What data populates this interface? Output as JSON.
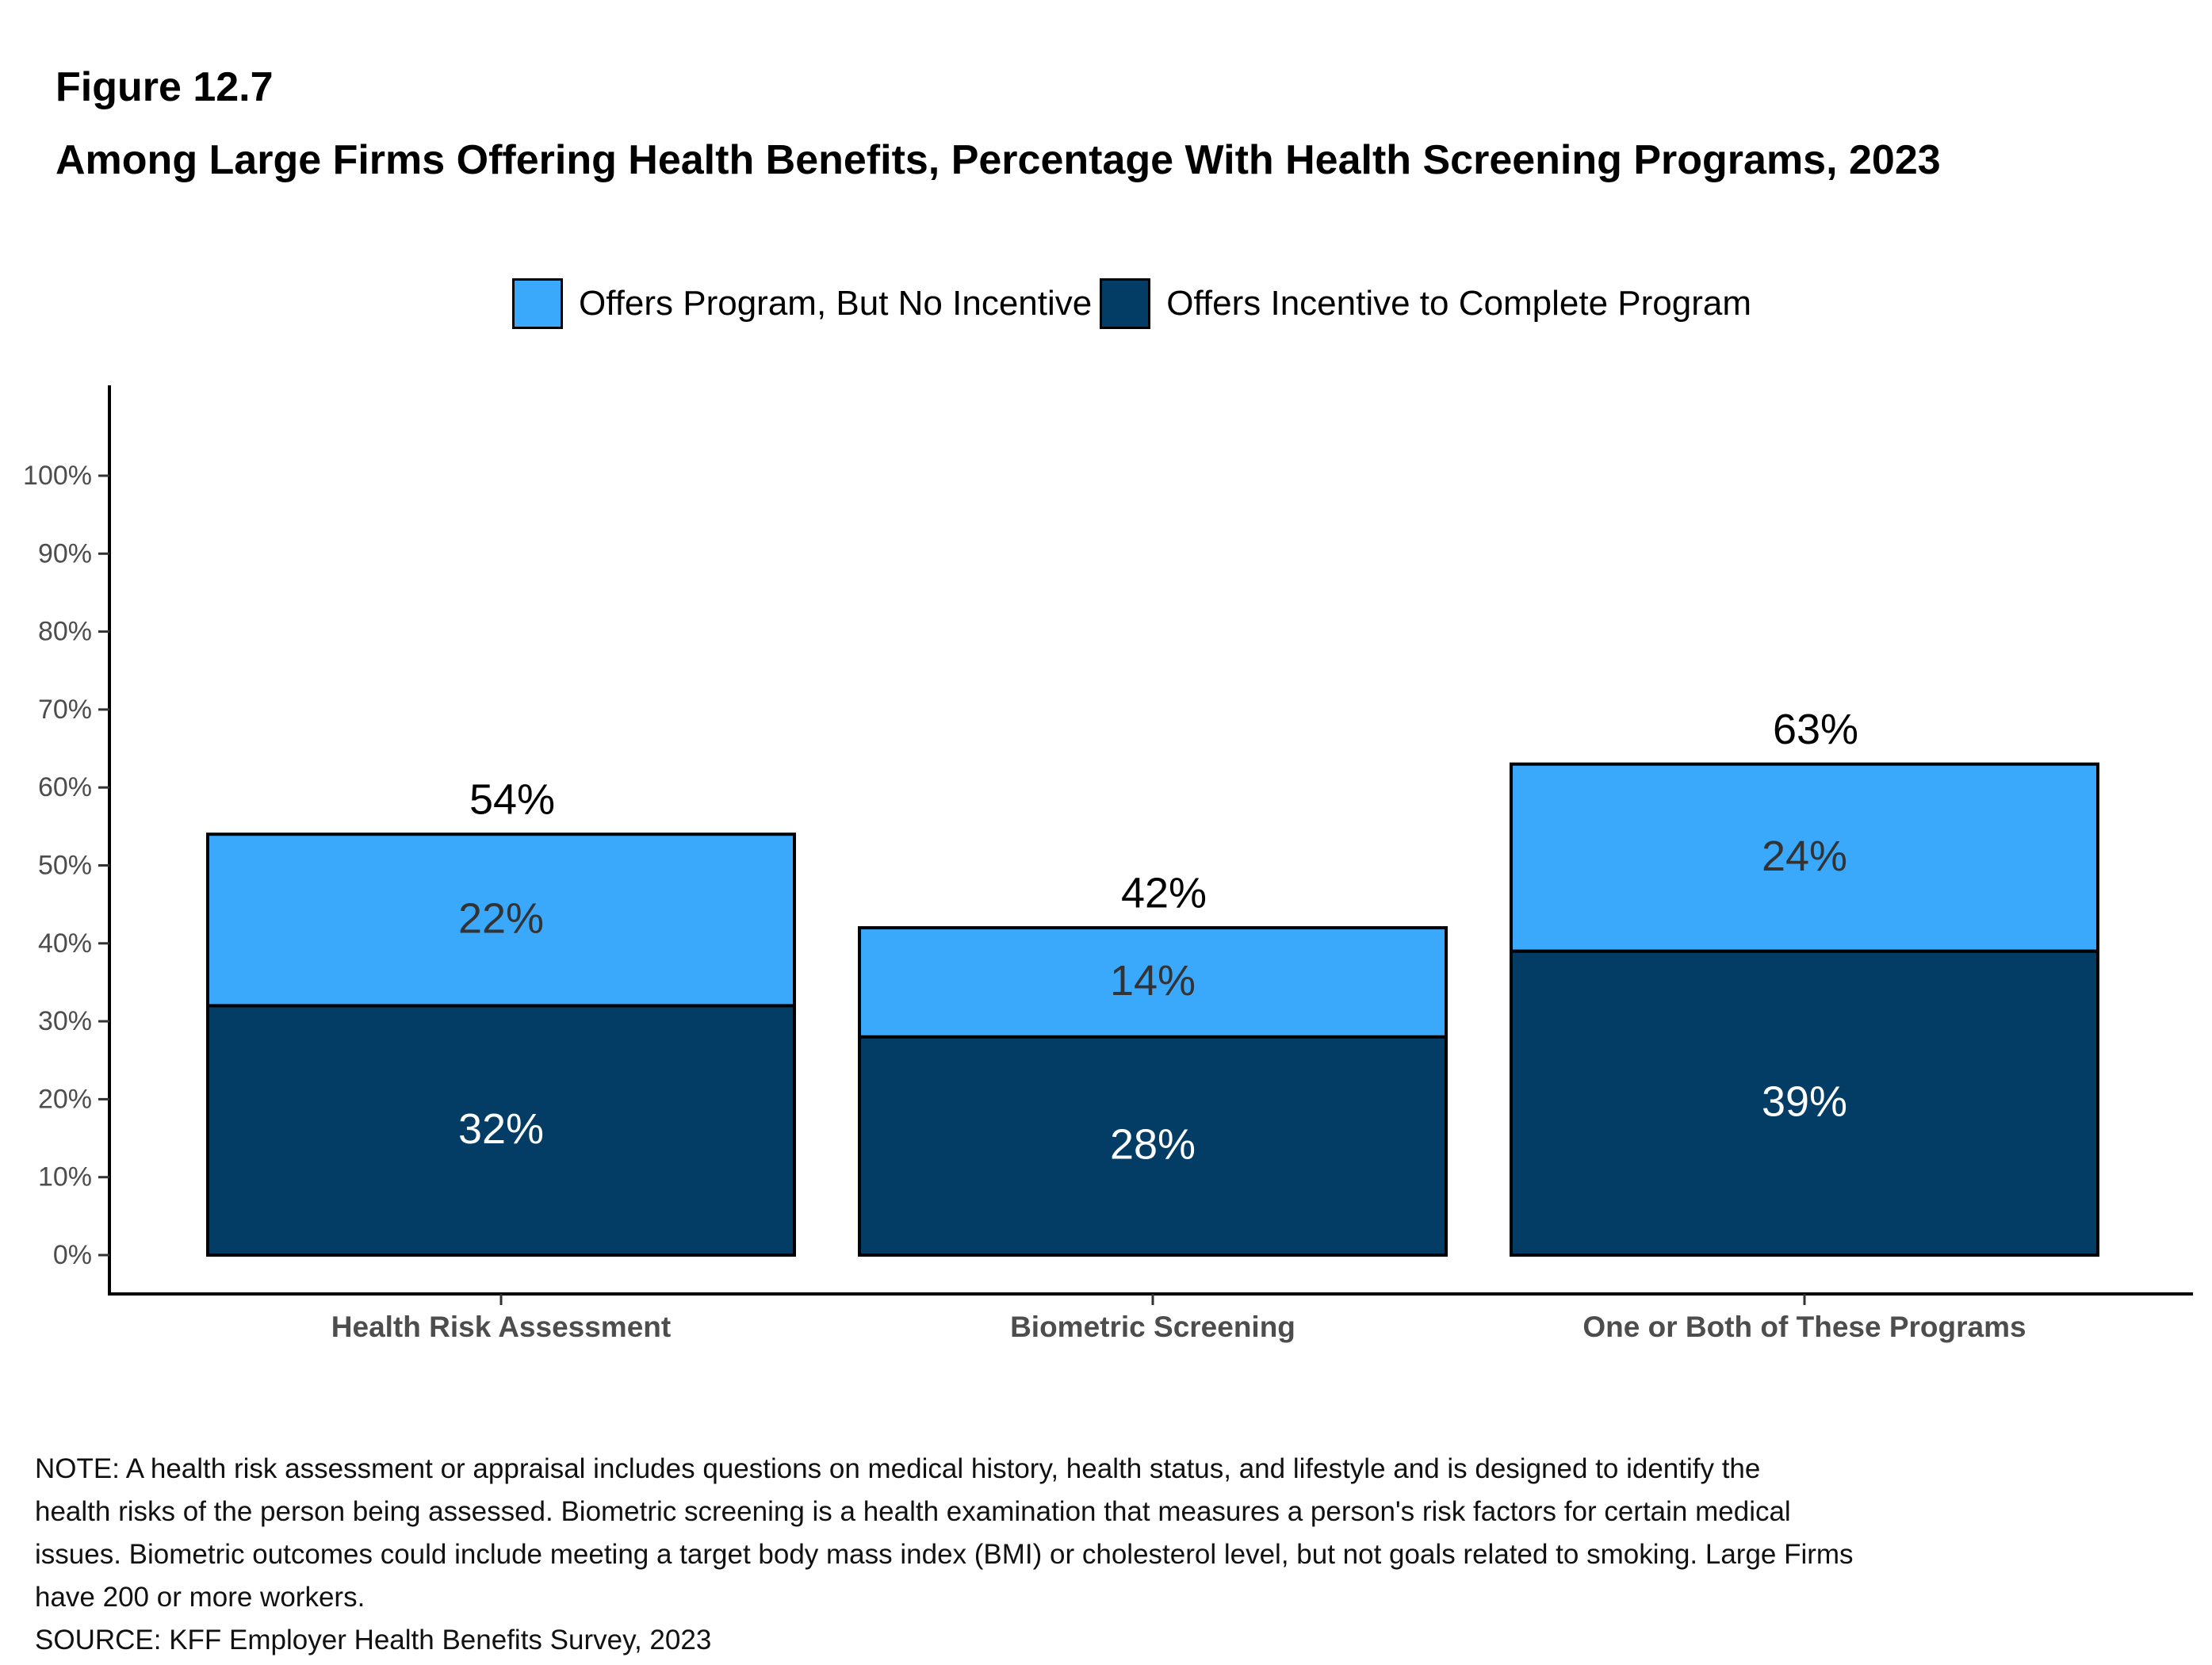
{
  "figure_label": "Figure 12.7",
  "title": "Among Large Firms Offering Health Benefits, Percentage With Health Screening Programs, 2023",
  "legend": [
    {
      "label": "Offers Program, But No Incentive",
      "color": "#3aa8fb"
    },
    {
      "label": "Offers Incentive to Complete Program",
      "color": "#033c65"
    }
  ],
  "chart_data": {
    "type": "bar",
    "stacked": true,
    "categories": [
      "Health Risk Assessment",
      "Biometric Screening",
      "One or Both of These Programs"
    ],
    "series": [
      {
        "name": "Offers Incentive to Complete Program",
        "values": [
          32,
          28,
          39
        ],
        "color": "#033c65",
        "labels": [
          "32%",
          "28%",
          "39%"
        ]
      },
      {
        "name": "Offers Program, But No Incentive",
        "values": [
          22,
          14,
          24
        ],
        "color": "#3aa8fb",
        "labels": [
          "22%",
          "14%",
          "24%"
        ]
      }
    ],
    "totals": [
      54,
      42,
      63
    ],
    "total_labels": [
      "54%",
      "42%",
      "63%"
    ],
    "ylim": [
      0,
      100
    ],
    "yticks": [
      0,
      10,
      20,
      30,
      40,
      50,
      60,
      70,
      80,
      90,
      100
    ],
    "ytick_labels": [
      "0%",
      "10%",
      "20%",
      "30%",
      "40%",
      "50%",
      "60%",
      "70%",
      "80%",
      "90%",
      "100%"
    ],
    "xlabel": "",
    "ylabel": "",
    "grid": false,
    "legend_position": "top"
  },
  "note": {
    "lines": [
      "NOTE: A health risk assessment or appraisal includes questions on medical history, health status, and lifestyle and is designed to identify the",
      "health risks of the person being assessed.  Biometric screening is a health examination that measures a person's risk factors for certain medical",
      "issues. Biometric outcomes could include meeting a target body mass index (BMI) or cholesterol level, but not goals related to smoking.  Large Firms",
      "have 200 or more workers."
    ],
    "source": "SOURCE: KFF Employer Health Benefits Survey, 2023"
  }
}
